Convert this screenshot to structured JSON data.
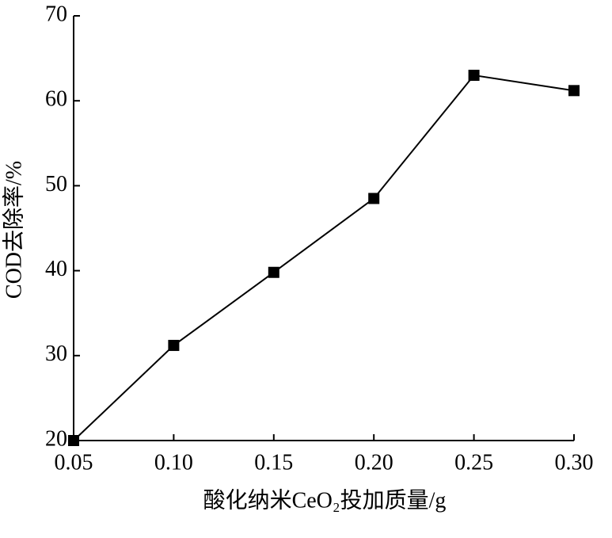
{
  "chart_data": {
    "type": "line",
    "x_label": "酸化纳米CeO₂投加质量/g",
    "y_label": "COD去除率/%",
    "x": [
      0.05,
      0.1,
      0.15,
      0.2,
      0.25,
      0.3
    ],
    "series": [
      {
        "color": "#000000",
        "values": [
          20,
          31.2,
          39.8,
          48.5,
          63,
          61.2
        ]
      }
    ],
    "xlim": [
      0.05,
      0.3
    ],
    "xticks": [
      0.05,
      {
        "value": 0.1,
        "label": "0.10"
      },
      0.15,
      {
        "value": 0.2,
        "label": "0.20"
      },
      0.25,
      {
        "value": 0.3,
        "label": "0.30"
      }
    ],
    "ylim": [
      20,
      70
    ],
    "yticks": [
      20,
      30,
      40,
      50,
      60,
      70
    ]
  }
}
